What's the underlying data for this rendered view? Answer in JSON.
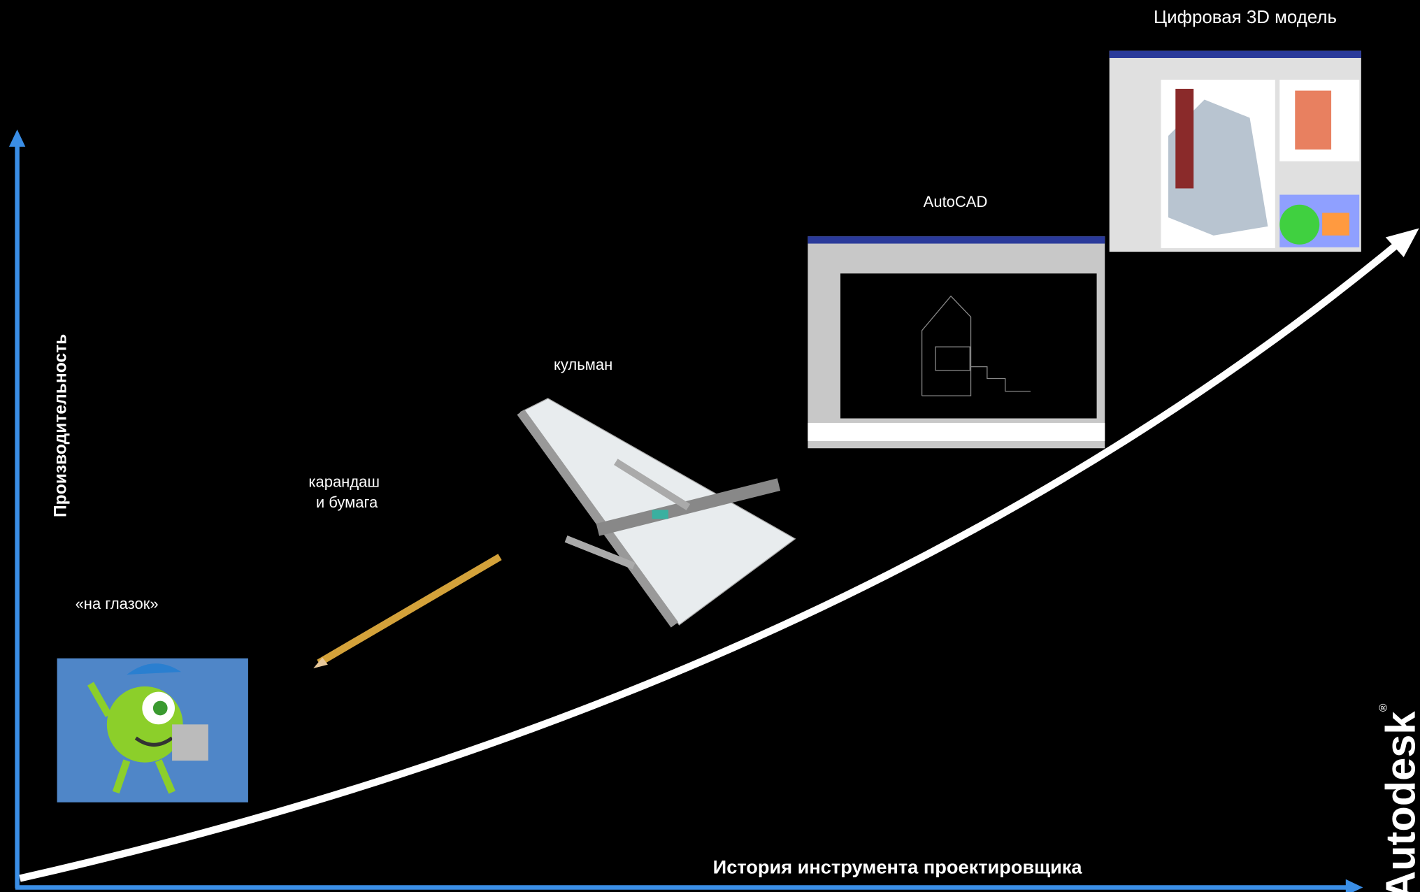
{
  "axes": {
    "y_label": "Производительность",
    "x_label": "История инструмента проектировщика"
  },
  "stages": [
    {
      "label_lines": [
        "«на глазок»"
      ]
    },
    {
      "label_lines": [
        "карандаш",
        "и бумага"
      ]
    },
    {
      "label_lines": [
        "кульман"
      ]
    },
    {
      "label_lines": [
        "AutoCAD"
      ]
    },
    {
      "label_lines": [
        "Цифровая 3D модель"
      ]
    }
  ],
  "brand": {
    "name": "Autodesk",
    "mark": "®"
  }
}
